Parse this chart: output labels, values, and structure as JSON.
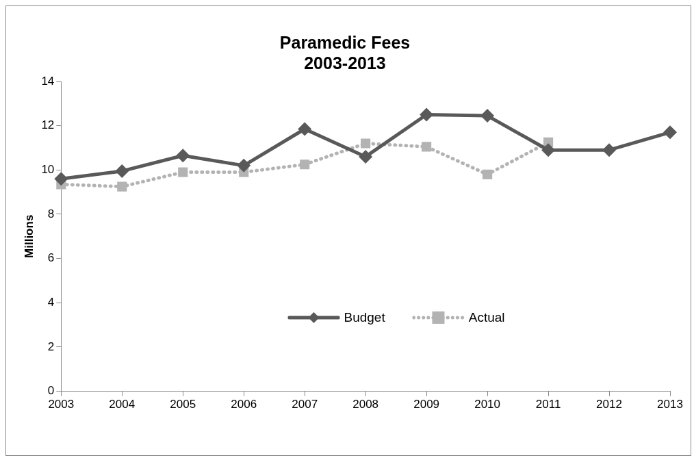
{
  "chart_data": {
    "type": "line",
    "title": "Paramedic Fees\n2003-2013",
    "ylabel": "Millions",
    "categories": [
      "2003",
      "2004",
      "2005",
      "2006",
      "2007",
      "2008",
      "2009",
      "2010",
      "2011",
      "2012",
      "2013"
    ],
    "series": [
      {
        "name": "Budget",
        "color": "#595959",
        "marker": "diamond",
        "line_style": "solid",
        "values": [
          9.6,
          9.95,
          10.65,
          10.2,
          11.85,
          10.6,
          12.5,
          12.45,
          10.9,
          10.9,
          11.7
        ]
      },
      {
        "name": "Actual",
        "color": "#b3b3b3",
        "marker": "square",
        "line_style": "dotted",
        "values": [
          9.35,
          9.25,
          9.9,
          9.9,
          10.25,
          11.2,
          11.05,
          9.8,
          11.25,
          null,
          null
        ]
      }
    ],
    "ylim": [
      0,
      14
    ],
    "yticks": [
      0,
      2,
      4,
      6,
      8,
      10,
      12,
      14
    ],
    "grid": false,
    "legend": "center"
  }
}
